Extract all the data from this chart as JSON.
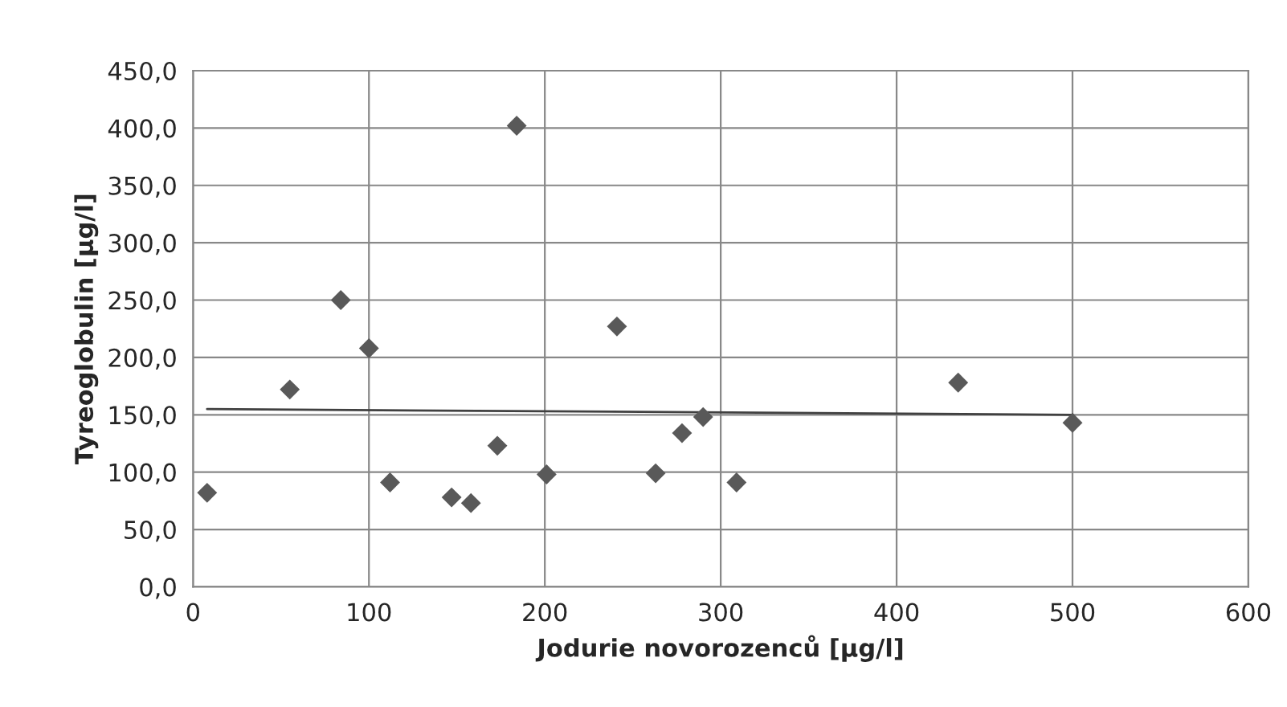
{
  "chart_data": {
    "type": "scatter",
    "xlabel": "Jodurie novorozenců [µg/l]",
    "ylabel": "Tyreoglobulin [µg/l]",
    "xlim": [
      0,
      600
    ],
    "xticks": [
      0,
      100,
      200,
      300,
      400,
      500,
      600
    ],
    "ylim": [
      0,
      450
    ],
    "yticks": [
      {
        "value": 0,
        "label": "0,0"
      },
      {
        "value": 50,
        "label": "50,0"
      },
      {
        "value": 100,
        "label": "100,0"
      },
      {
        "value": 150,
        "label": "150,0"
      },
      {
        "value": 200,
        "label": "200,0"
      },
      {
        "value": 250,
        "label": "250,0"
      },
      {
        "value": 300,
        "label": "300,0"
      },
      {
        "value": 350,
        "label": "350,0"
      },
      {
        "value": 400,
        "label": "400,0"
      },
      {
        "value": 450,
        "label": "450,0"
      }
    ],
    "grid": true,
    "series": [
      {
        "marker": "diamond",
        "color": "#595959",
        "x": [
          8,
          55,
          84,
          100,
          112,
          147,
          158,
          173,
          184,
          201,
          241,
          263,
          278,
          290,
          309,
          435,
          500
        ],
        "values": [
          82,
          172,
          250,
          208,
          91,
          78,
          73,
          123,
          402,
          98,
          227,
          99,
          134,
          148,
          91,
          178,
          143
        ]
      },
      {
        "type": "line",
        "marker": "none",
        "line_style": "solid",
        "color": "#404040",
        "x": [
          8,
          500
        ],
        "values": [
          155,
          150
        ]
      }
    ]
  }
}
